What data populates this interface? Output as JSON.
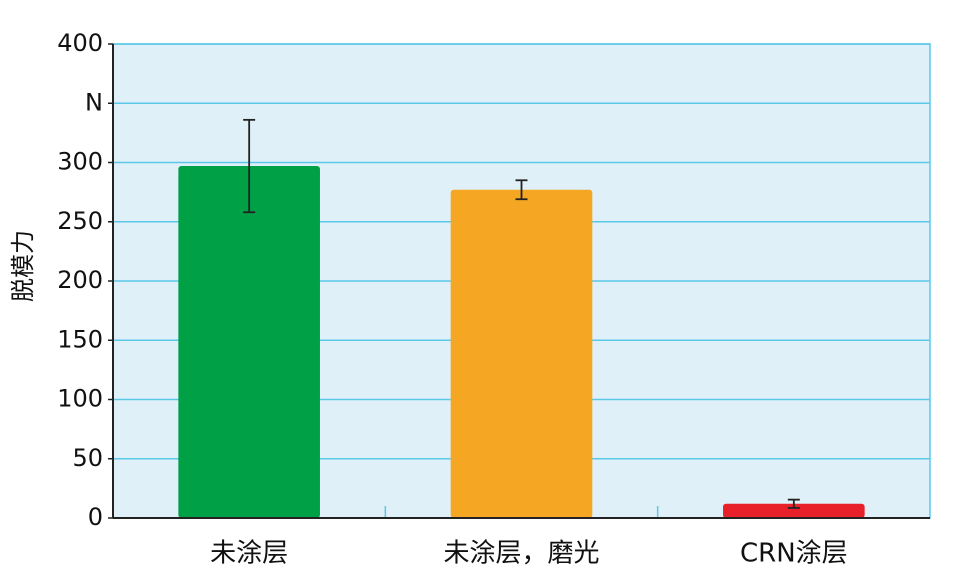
{
  "chart_data": {
    "type": "bar",
    "y_label": "脱模力",
    "categories": [
      "未涂层",
      "未涂层，磨光",
      "CRN涂层"
    ],
    "values": [
      297,
      277,
      12
    ],
    "errors": [
      39,
      8,
      3.5
    ],
    "colors": [
      "#00a046",
      "#f5a623",
      "#e8202a"
    ],
    "ylim": [
      0,
      400
    ],
    "yticks": [
      0,
      50,
      100,
      150,
      200,
      250,
      300,
      {
        "value": 350,
        "label": "N"
      },
      400
    ],
    "grid": true
  }
}
